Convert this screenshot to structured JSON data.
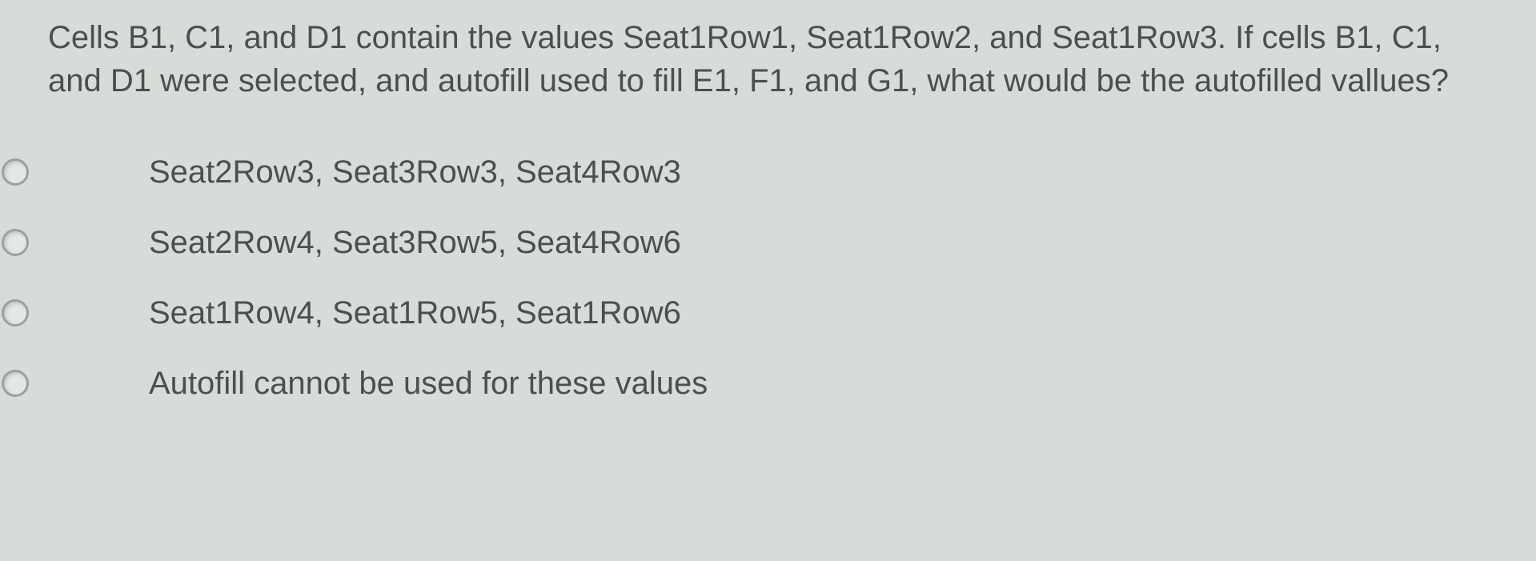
{
  "question": {
    "text": "Cells B1, C1, and D1 contain the values Seat1Row1, Seat1Row2, and Seat1Row3. If cells B1, C1, and D1 were selected, and autofill used to fill E1, F1, and G1, what would be the autofilled vallues?"
  },
  "options": [
    {
      "label": "Seat2Row3, Seat3Row3, Seat4Row3"
    },
    {
      "label": "Seat2Row4, Seat3Row5, Seat4Row6"
    },
    {
      "label": "Seat1Row4, Seat1Row5, Seat1Row6"
    },
    {
      "label": "Autofill cannot be used for these values"
    }
  ],
  "colors": {
    "background": "#d8dcd8",
    "text": "#4a5050",
    "radio_border": "#9aa2a0"
  },
  "typography": {
    "question_fontsize": 40,
    "option_fontsize": 40,
    "font_family": "Arial"
  }
}
